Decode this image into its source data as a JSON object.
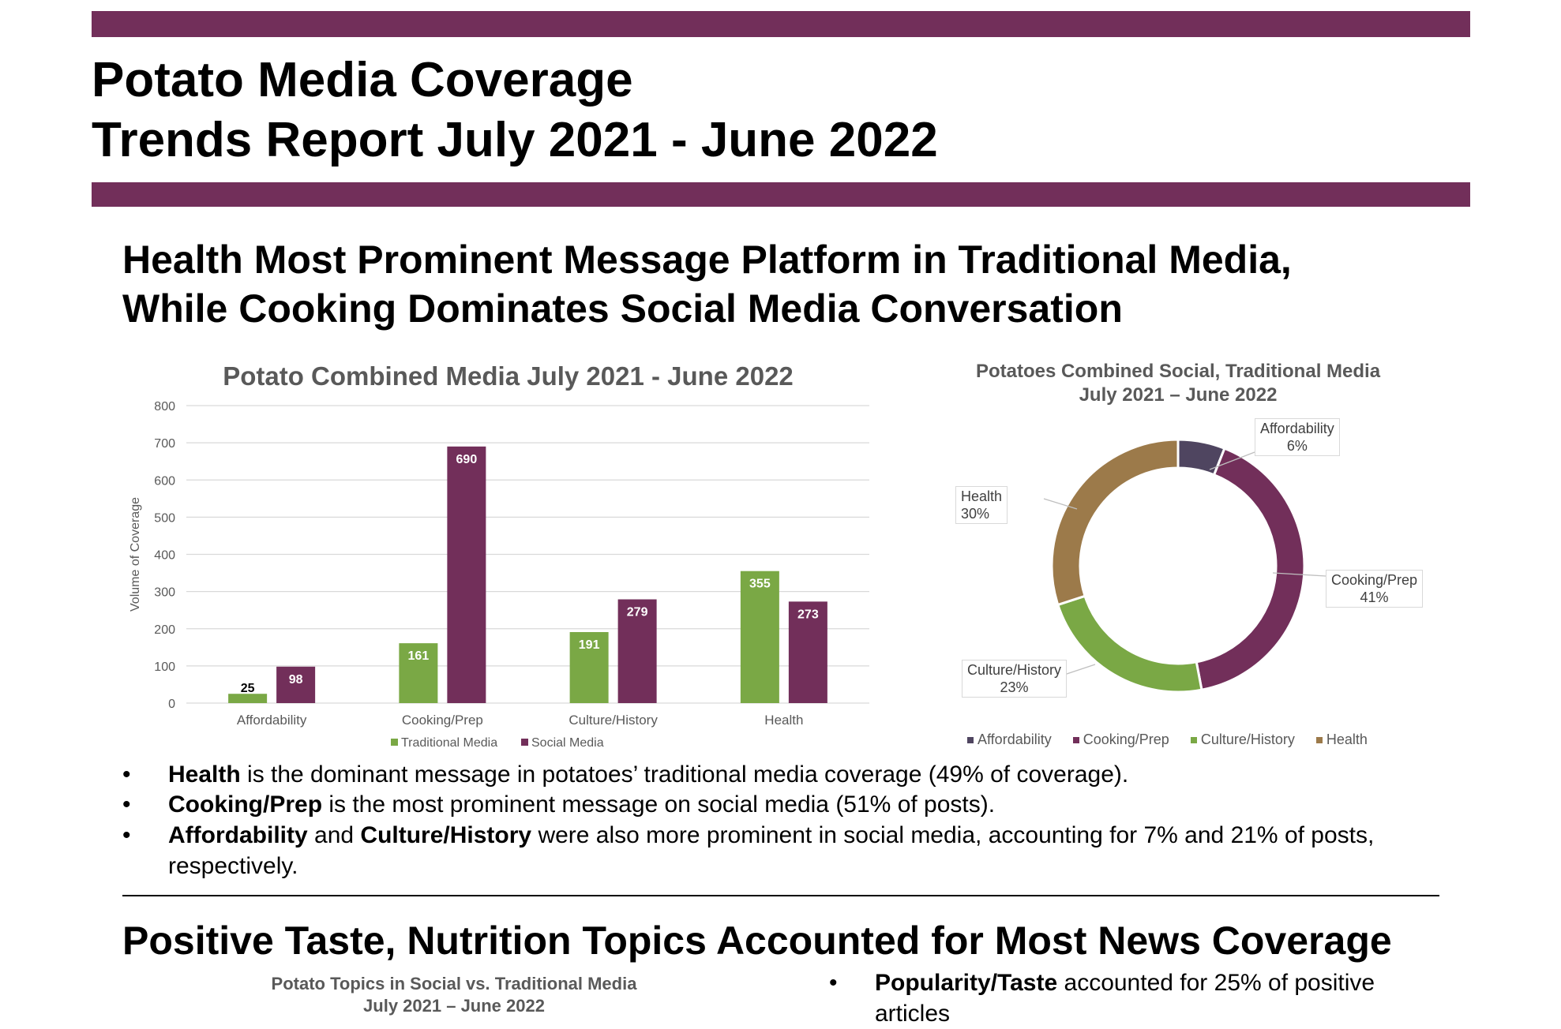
{
  "header": {
    "title_line1": "Potato Media Coverage",
    "title_line2": "Trends Report July 2021 - June 2022",
    "accent_color": "#722f5a"
  },
  "section1": {
    "heading_line1": "Health Most Prominent Message Platform in Traditional Media,",
    "heading_line2": "While Cooking Dominates Social Media Conversation",
    "bullets": [
      {
        "bold": "Health",
        "text": " is the dominant message in potatoes’ traditional media coverage (49% of coverage)."
      },
      {
        "bold": "Cooking/Prep",
        "text": " is the most prominent message on social media (51% of posts)."
      },
      {
        "bold": "Affordability",
        "mid": " and ",
        "bold2": "Culture/History",
        "text": " were also more prominent in social media, accounting for 7% and 21% of posts, respectively."
      }
    ],
    "bullet_symbol": "•"
  },
  "section2": {
    "heading": "Positive Taste, Nutrition Topics Accounted for Most News Coverage",
    "chart_title_line1": "Potato Topics in Social vs. Traditional Media",
    "chart_title_line2": "July 2021 – June 2022",
    "bullet": {
      "bold": "Popularity/Taste",
      "text": " accounted for 25% of positive",
      "text2": "articles"
    }
  },
  "chart_data": [
    {
      "type": "bar",
      "title": "Potato Combined Media July 2021 - June 2022",
      "ylabel": "Volume of Coverage",
      "xlabel": "",
      "ylim": [
        0,
        800
      ],
      "yticks": [
        0,
        100,
        200,
        300,
        400,
        500,
        600,
        700,
        800
      ],
      "grid": true,
      "legend_placement": "bottom",
      "categories": [
        "Affordability",
        "Cooking/Prep",
        "Culture/History",
        "Health"
      ],
      "series": [
        {
          "name": "Traditional Media",
          "values": [
            25,
            161,
            191,
            355
          ],
          "color": "#7aa845"
        },
        {
          "name": "Social Media",
          "values": [
            98,
            690,
            279,
            273
          ],
          "color": "#722f5a"
        }
      ]
    },
    {
      "type": "pie",
      "donut": true,
      "title_line1": "Potatoes Combined Social, Traditional Media",
      "title_line2": "July 2021 – June 2022",
      "legend_placement": "bottom",
      "categories": [
        "Affordability",
        "Cooking/Prep",
        "Culture/History",
        "Health"
      ],
      "values": [
        6,
        41,
        23,
        30
      ],
      "labels": [
        "6%",
        "41%",
        "23%",
        "30%"
      ],
      "colors": [
        "#4f4560",
        "#722f5a",
        "#7aa845",
        "#9c7a4a"
      ]
    }
  ]
}
